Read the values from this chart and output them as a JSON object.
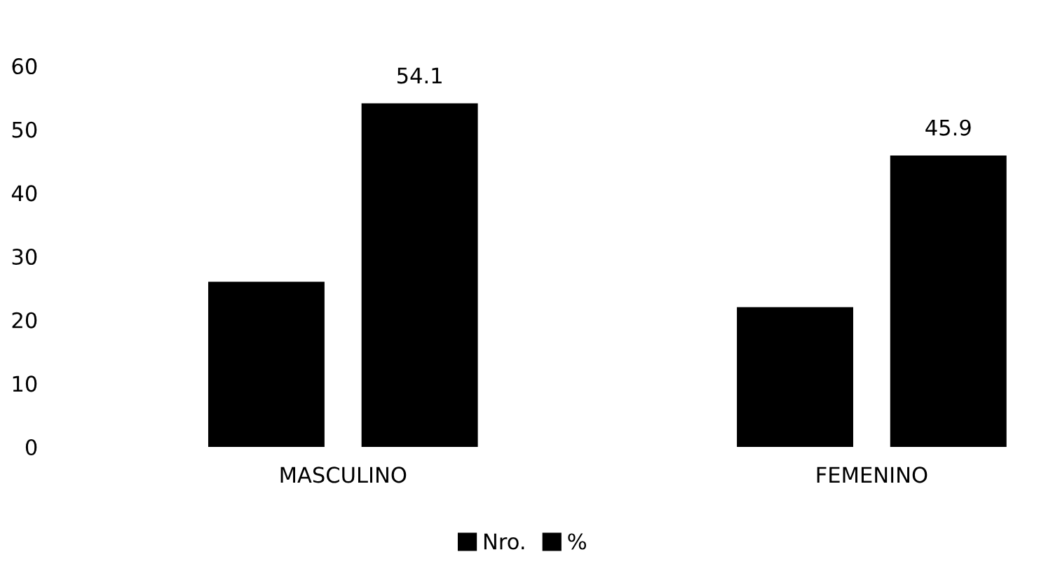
{
  "chart_data": {
    "type": "bar",
    "categories": [
      "MASCULINO",
      "FEMENINO"
    ],
    "series": [
      {
        "name": "Nro.",
        "color": "#000000",
        "values": [
          26,
          22
        ]
      },
      {
        "name": "%",
        "color": "#000000",
        "values": [
          54.1,
          45.9
        ],
        "value_labels": [
          "54.1",
          "45.9"
        ]
      }
    ],
    "ylim": [
      0,
      60
    ],
    "yticks": [
      0,
      10,
      20,
      30,
      40,
      50,
      60
    ],
    "grid": false,
    "legend": "bottom"
  }
}
